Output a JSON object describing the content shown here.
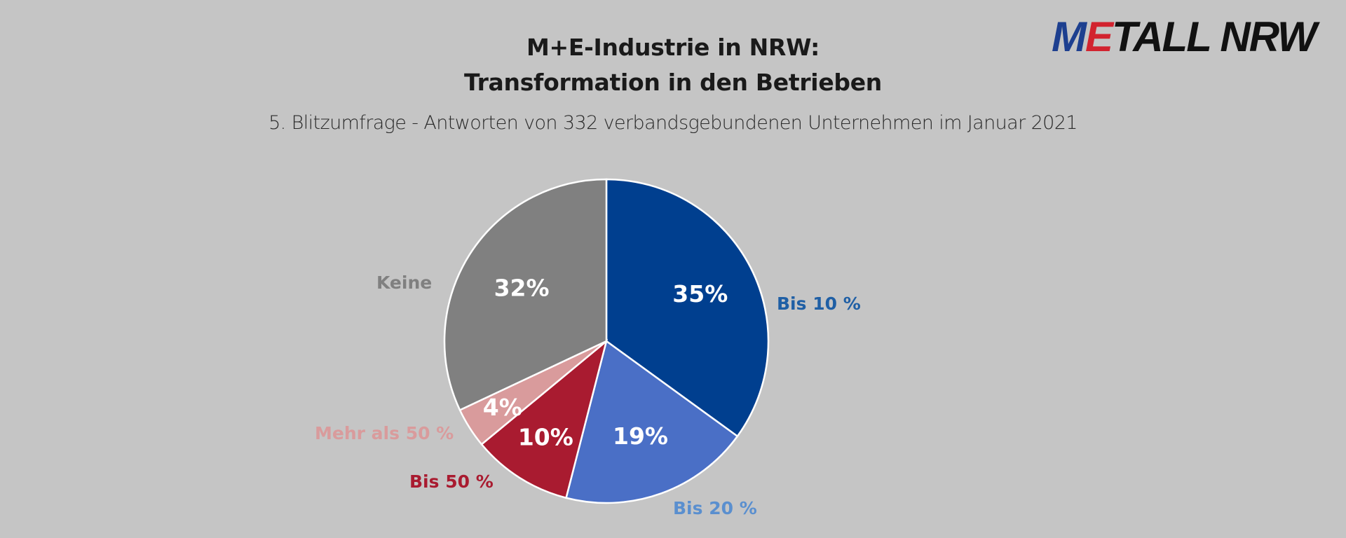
{
  "header": {
    "title_line1": "M+E-Industrie in NRW:",
    "title_line2": "Transformation in den Betrieben",
    "subtitle": "5. Blitzumfrage - Antworten von 332 verbandsgebundenen Unternehmen im Januar 2021"
  },
  "logo": {
    "part_m": "M",
    "part_e": "E",
    "rest": "TALL NRW",
    "colors": {
      "m": "#1d3f8f",
      "e": "#d2232f",
      "rest": "#111111"
    }
  },
  "chart_data": {
    "type": "pie",
    "title": "M+E-Industrie in NRW: Transformation in den Betrieben",
    "subtitle": "5. Blitzumfrage - Antworten von 332 verbandsgebundenen Unternehmen im Januar 2021",
    "slices": [
      {
        "name": "Bis 10 %",
        "value": 35,
        "label": "35%",
        "color": "#003f8f",
        "label_color": "#1f5fa5"
      },
      {
        "name": "Bis 20 %",
        "value": 19,
        "label": "19%",
        "color": "#4a6fc6",
        "label_color": "#5a8fcf"
      },
      {
        "name": "Bis 50 %",
        "value": 10,
        "label": "10%",
        "color": "#a91b30",
        "label_color": "#a91b30"
      },
      {
        "name": "Mehr als 50 %",
        "value": 4,
        "label": "4%",
        "color": "#d99b9c",
        "label_color": "#d99b9c"
      },
      {
        "name": "Keine",
        "value": 32,
        "label": "32%",
        "color": "#808080",
        "label_color": "#808080"
      }
    ],
    "start": "12 o'clock",
    "direction": "clockwise"
  }
}
